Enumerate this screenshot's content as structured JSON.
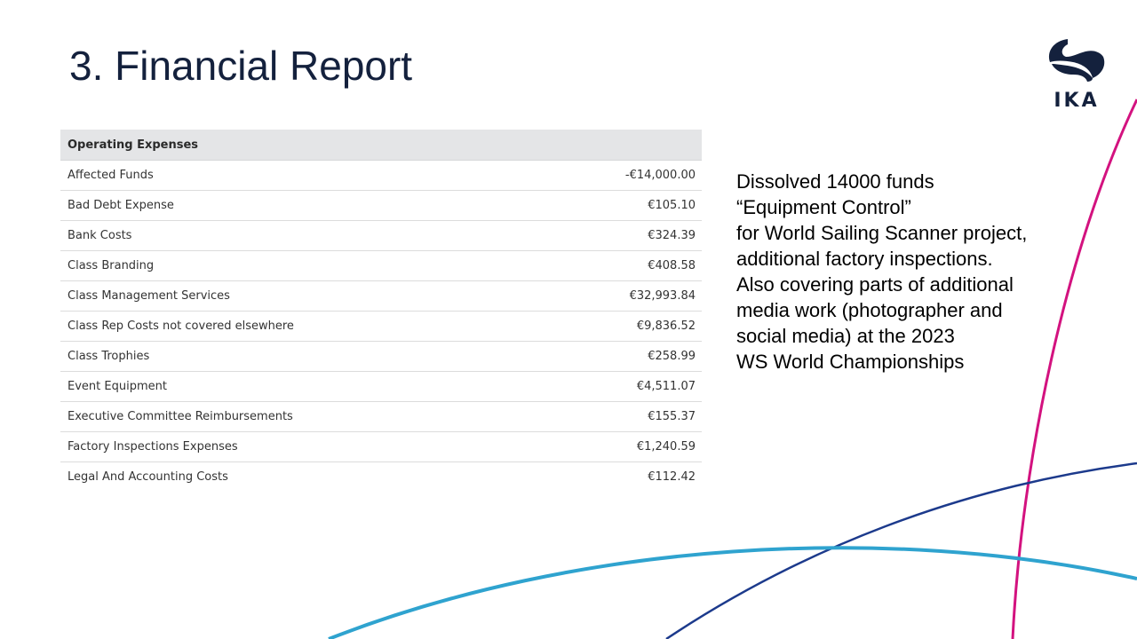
{
  "slide": {
    "title": "3. Financial Report"
  },
  "logo": {
    "icon": "ika-logo-icon",
    "text": "IKA",
    "color": "#14213d"
  },
  "table": {
    "header": "Operating Expenses",
    "rows": [
      {
        "label": "Affected Funds",
        "value": "-€14,000.00"
      },
      {
        "label": "Bad Debt Expense",
        "value": "€105.10"
      },
      {
        "label": "Bank Costs",
        "value": "€324.39"
      },
      {
        "label": "Class Branding",
        "value": "€408.58"
      },
      {
        "label": "Class Management Services",
        "value": "€32,993.84"
      },
      {
        "label": "Class Rep Costs not covered elsewhere",
        "value": "€9,836.52"
      },
      {
        "label": "Class Trophies",
        "value": "€258.99"
      },
      {
        "label": "Event Equipment",
        "value": "€4,511.07"
      },
      {
        "label": "Executive Committee Reimbursements",
        "value": "€155.37"
      },
      {
        "label": "Factory Inspections Expenses",
        "value": "€1,240.59"
      },
      {
        "label": "Legal And Accounting Costs",
        "value": "€112.42"
      }
    ]
  },
  "note": {
    "lines": [
      "Dissolved 14000 funds",
      "“Equipment Control”",
      "for World Sailing Scanner project,",
      "additional factory inspections.",
      "Also covering parts of additional",
      "media work (photographer and",
      "social media) at the 2023",
      "WS World Championships"
    ]
  },
  "colors": {
    "title": "#14213d",
    "magenta_curve": "#d3127f",
    "navy_curve": "#1c3a8c",
    "cyan_curve": "#2fa3cf",
    "table_header_bg": "#e4e5e7"
  }
}
